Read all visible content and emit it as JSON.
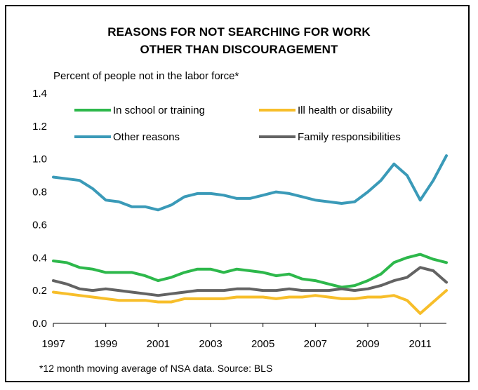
{
  "chart_data": {
    "type": "line",
    "title_line1": "REASONS FOR NOT SEARCHING FOR WORK",
    "title_line2": "OTHER THAN DISCOURAGEMENT",
    "ylabel": "Percent of people not in the labor force*",
    "footnote": "*12 month moving average of NSA data. Source: BLS",
    "ylim": [
      0.0,
      1.4
    ],
    "yticks": [
      "0.0",
      "0.2",
      "0.4",
      "0.6",
      "0.8",
      "1.0",
      "1.2",
      "1.4"
    ],
    "xlim": [
      1997,
      2012
    ],
    "xticks": [
      "1997",
      "1999",
      "2001",
      "2003",
      "2005",
      "2007",
      "2009",
      "2011"
    ],
    "legend": "top",
    "grid": false,
    "series": [
      {
        "name": "In school or training",
        "color": "#2db84b",
        "x": [
          1997.0,
          1997.5,
          1998.0,
          1998.5,
          1999.0,
          1999.5,
          2000.0,
          2000.5,
          2001.0,
          2001.5,
          2002.0,
          2002.5,
          2003.0,
          2003.5,
          2004.0,
          2004.5,
          2005.0,
          2005.5,
          2006.0,
          2006.5,
          2007.0,
          2007.5,
          2008.0,
          2008.5,
          2009.0,
          2009.5,
          2010.0,
          2010.5,
          2011.0,
          2011.5,
          2012.0
        ],
        "values": [
          0.38,
          0.37,
          0.34,
          0.33,
          0.31,
          0.31,
          0.31,
          0.29,
          0.26,
          0.28,
          0.31,
          0.33,
          0.33,
          0.31,
          0.33,
          0.32,
          0.31,
          0.29,
          0.3,
          0.27,
          0.26,
          0.24,
          0.22,
          0.23,
          0.26,
          0.3,
          0.37,
          0.4,
          0.42,
          0.39,
          0.37
        ]
      },
      {
        "name": "Ill health or disability",
        "color": "#f7be2a",
        "x": [
          1997.0,
          1997.5,
          1998.0,
          1998.5,
          1999.0,
          1999.5,
          2000.0,
          2000.5,
          2001.0,
          2001.5,
          2002.0,
          2002.5,
          2003.0,
          2003.5,
          2004.0,
          2004.5,
          2005.0,
          2005.5,
          2006.0,
          2006.5,
          2007.0,
          2007.5,
          2008.0,
          2008.5,
          2009.0,
          2009.5,
          2010.0,
          2010.5,
          2011.0,
          2011.5,
          2012.0
        ],
        "values": [
          0.19,
          0.18,
          0.17,
          0.16,
          0.15,
          0.14,
          0.14,
          0.14,
          0.13,
          0.13,
          0.15,
          0.15,
          0.15,
          0.15,
          0.16,
          0.16,
          0.16,
          0.15,
          0.16,
          0.16,
          0.17,
          0.16,
          0.15,
          0.15,
          0.16,
          0.16,
          0.17,
          0.14,
          0.06,
          0.13,
          0.2
        ]
      },
      {
        "name": "Other reasons",
        "color": "#3a9ab8",
        "x": [
          1997.0,
          1997.5,
          1998.0,
          1998.5,
          1999.0,
          1999.5,
          2000.0,
          2000.5,
          2001.0,
          2001.5,
          2002.0,
          2002.5,
          2003.0,
          2003.5,
          2004.0,
          2004.5,
          2005.0,
          2005.5,
          2006.0,
          2006.5,
          2007.0,
          2007.5,
          2008.0,
          2008.5,
          2009.0,
          2009.5,
          2010.0,
          2010.5,
          2011.0,
          2011.5,
          2012.0
        ],
        "values": [
          0.89,
          0.88,
          0.87,
          0.82,
          0.75,
          0.74,
          0.71,
          0.71,
          0.69,
          0.72,
          0.77,
          0.79,
          0.79,
          0.78,
          0.76,
          0.76,
          0.78,
          0.8,
          0.79,
          0.77,
          0.75,
          0.74,
          0.73,
          0.74,
          0.8,
          0.87,
          0.97,
          0.9,
          0.75,
          0.87,
          1.02
        ]
      },
      {
        "name": "Family responsibilities",
        "color": "#636363",
        "x": [
          1997.0,
          1997.5,
          1998.0,
          1998.5,
          1999.0,
          1999.5,
          2000.0,
          2000.5,
          2001.0,
          2001.5,
          2002.0,
          2002.5,
          2003.0,
          2003.5,
          2004.0,
          2004.5,
          2005.0,
          2005.5,
          2006.0,
          2006.5,
          2007.0,
          2007.5,
          2008.0,
          2008.5,
          2009.0,
          2009.5,
          2010.0,
          2010.5,
          2011.0,
          2011.5,
          2012.0
        ],
        "values": [
          0.26,
          0.24,
          0.21,
          0.2,
          0.21,
          0.2,
          0.19,
          0.18,
          0.17,
          0.18,
          0.19,
          0.2,
          0.2,
          0.2,
          0.21,
          0.21,
          0.2,
          0.2,
          0.21,
          0.2,
          0.2,
          0.2,
          0.21,
          0.2,
          0.21,
          0.23,
          0.26,
          0.28,
          0.34,
          0.32,
          0.25
        ]
      }
    ]
  }
}
